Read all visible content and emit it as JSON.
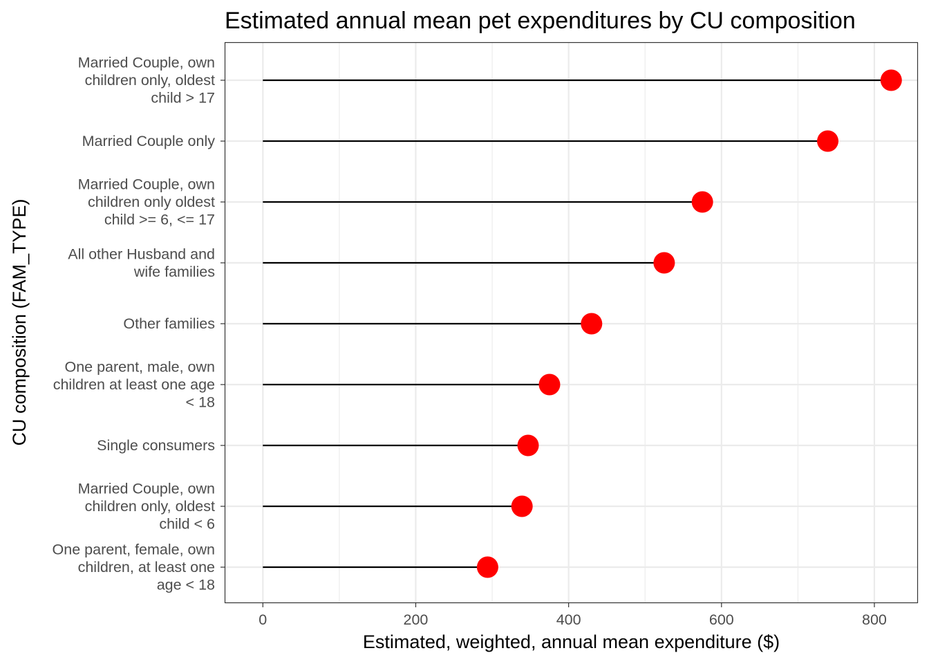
{
  "chart_data": {
    "type": "lollipop",
    "title": "Estimated annual mean pet expenditures by CU composition",
    "xlabel": "Estimated, weighted, annual mean expenditure ($)",
    "ylabel": "CU composition (FAM_TYPE)",
    "xlim": [
      -50,
      857
    ],
    "x_ticks": [
      "0",
      "200",
      "400",
      "600",
      "800"
    ],
    "x_tick_values": [
      0,
      200,
      400,
      600,
      800
    ],
    "grid": true,
    "point_color": "#ff0000",
    "segment_color": "#000000",
    "categories": [
      {
        "label_lines": [
          "Married Couple, own",
          "children only, oldest",
          "child > 17"
        ],
        "value": 822
      },
      {
        "label_lines": [
          "Married Couple only"
        ],
        "value": 739
      },
      {
        "label_lines": [
          "Married Couple, own",
          "children only oldest",
          "child >= 6, <= 17"
        ],
        "value": 575
      },
      {
        "label_lines": [
          "All other Husband and",
          "wife families"
        ],
        "value": 525
      },
      {
        "label_lines": [
          "Other families"
        ],
        "value": 430
      },
      {
        "label_lines": [
          "One parent, male, own",
          "children at least one age",
          "< 18"
        ],
        "value": 375
      },
      {
        "label_lines": [
          "Single consumers"
        ],
        "value": 347
      },
      {
        "label_lines": [
          "Married Couple, own",
          "children only, oldest",
          "child < 6"
        ],
        "value": 339
      },
      {
        "label_lines": [
          "One parent, female, own",
          "children, at least one",
          "age < 18"
        ],
        "value": 294
      }
    ]
  }
}
